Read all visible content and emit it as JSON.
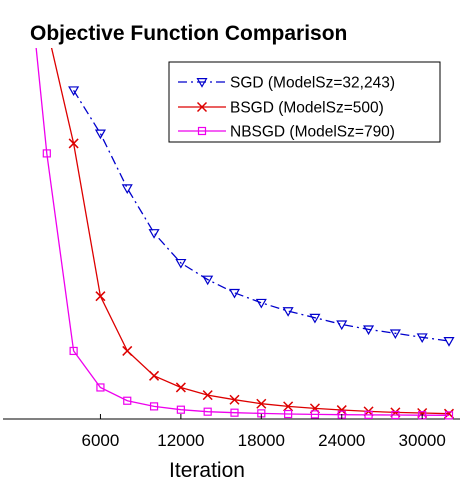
{
  "chart_data": {
    "type": "line",
    "title": "Objective Function Comparison",
    "xlabel": "Iteration",
    "ylabel": "",
    "x_ticks": [
      "6000",
      "12000",
      "18000",
      "24000",
      "30000"
    ],
    "x_tick_values": [
      6000,
      12000,
      18000,
      24000,
      30000
    ],
    "xlim": [
      0,
      32000
    ],
    "ylim": [
      0,
      100
    ],
    "grid": false,
    "legend_position": "top-right",
    "series": [
      {
        "name": "SGD (ModelSz=32,243)",
        "color": "#0000cc",
        "line_style": "dash-dot",
        "marker": "triangle-down",
        "x": [
          4000,
          6000,
          8000,
          10000,
          12000,
          14000,
          16000,
          18000,
          20000,
          22000,
          24000,
          26000,
          28000,
          30000,
          32000
        ],
        "y": [
          99,
          86,
          69.5,
          56,
          47,
          42,
          38,
          35,
          32.5,
          30.5,
          28.5,
          27,
          25.8,
          24.6,
          23.5
        ]
      },
      {
        "name": "BSGD (ModelSz=500)",
        "color": "#dd0000",
        "line_style": "solid",
        "marker": "x",
        "x": [
          2000,
          4000,
          6000,
          8000,
          10000,
          12000,
          14000,
          16000,
          18000,
          20000,
          22000,
          24000,
          26000,
          28000,
          30000,
          32000
        ],
        "y": [
          118,
          83,
          37,
          20.5,
          13,
          9.5,
          7.2,
          5.8,
          4.6,
          3.8,
          3.2,
          2.7,
          2.3,
          2,
          1.8,
          1.6
        ]
      },
      {
        "name": "NBSGD (ModelSz=790)",
        "color": "#ee00ee",
        "line_style": "solid",
        "marker": "square",
        "x": [
          0,
          2000,
          4000,
          6000,
          8000,
          10000,
          12000,
          14000,
          16000,
          18000,
          20000,
          22000,
          24000,
          26000,
          28000,
          30000,
          32000
        ],
        "y": [
          160,
          80,
          20.5,
          9.5,
          5.5,
          3.8,
          2.8,
          2.2,
          1.9,
          1.7,
          1.5,
          1.4,
          1.3,
          1.25,
          1.2,
          1.15,
          1.1
        ]
      }
    ]
  }
}
